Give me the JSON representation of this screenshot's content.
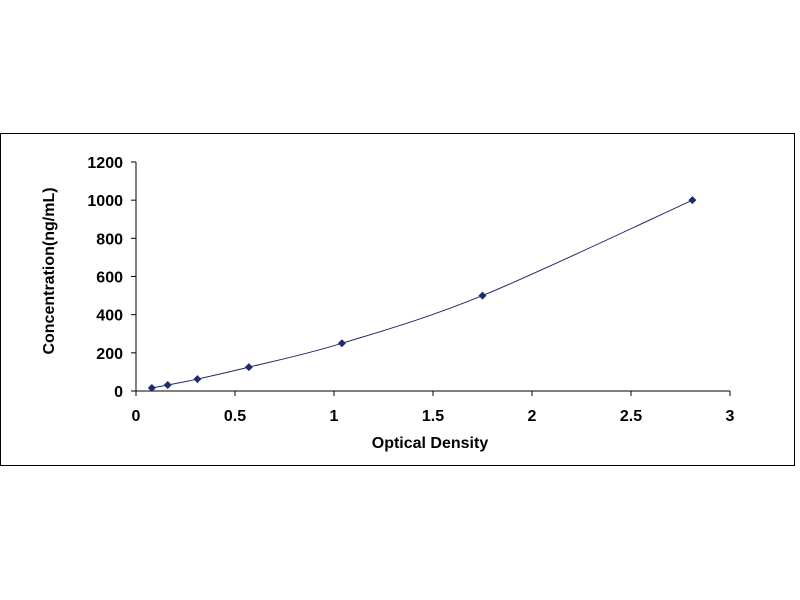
{
  "chart_data": {
    "type": "scatter",
    "title": "",
    "xlabel": "Optical Density",
    "ylabel": "Concentration(ng/mL)",
    "xlim": [
      0,
      3
    ],
    "ylim": [
      0,
      1200
    ],
    "x_ticks": [
      0,
      0.5,
      1,
      1.5,
      2,
      2.5,
      3
    ],
    "x_tick_labels": [
      "0",
      "0.5",
      "1",
      "1.5",
      "2",
      "2.5",
      "3"
    ],
    "y_ticks": [
      0,
      200,
      400,
      600,
      800,
      1000,
      1200
    ],
    "y_tick_labels": [
      "0",
      "200",
      "400",
      "600",
      "800",
      "1000",
      "1200"
    ],
    "grid": false,
    "legend": false,
    "marker": "diamond",
    "marker_color": "#1f2a6b",
    "line_color": "#1f2a6b",
    "trendline": true,
    "series": [
      {
        "x": [
          0.08,
          0.16,
          0.31,
          0.57,
          1.04,
          1.75,
          2.81
        ],
        "y": [
          15.6,
          31.2,
          62.5,
          125,
          250,
          500,
          1000
        ]
      }
    ]
  }
}
